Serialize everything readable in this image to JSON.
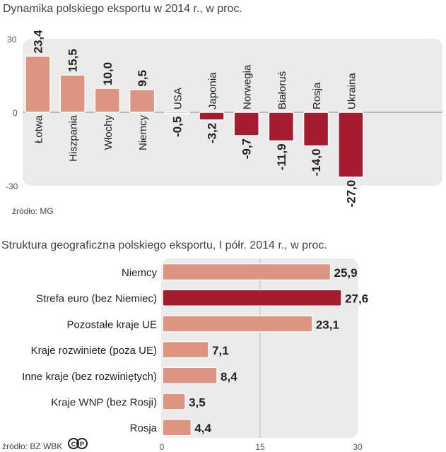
{
  "chart_data": [
    {
      "type": "bar",
      "orientation": "vertical",
      "title": "Dynamika polskiego eksportu w 2014 r., w proc.",
      "categories": [
        "Łotwa",
        "Hiszpania",
        "Włochy",
        "Niemcy",
        "USA",
        "Japonia",
        "Norwegia",
        "Białoruś",
        "Rosja",
        "Ukraina"
      ],
      "values": [
        23.4,
        15.5,
        10.0,
        9.5,
        -0.5,
        -3.2,
        -9.7,
        -11.9,
        -14.0,
        -27.0
      ],
      "value_labels": [
        "23,4",
        "15,5",
        "10,0",
        "9,5",
        "-0,5",
        "-3,2",
        "-9,7",
        "-11,9",
        "-14,0",
        "-27,0"
      ],
      "ylim": [
        -30,
        30
      ],
      "yticks": [
        "30",
        "0",
        "-30"
      ],
      "source": "źródło: MG",
      "colors": {
        "positive": "#dd9582",
        "negative": "#a51c30",
        "panel": "#ebebeb"
      }
    },
    {
      "type": "bar",
      "orientation": "horizontal",
      "title": "Struktura geograficzna polskiego eksportu, I półr. 2014 r., w proc.",
      "categories": [
        "Niemcy",
        "Strefa euro (bez Niemiec)",
        "Pozostałe kraje UE",
        "Kraje rozwiniete (poza UE)",
        "Inne kraje (bez rozwiniętych)",
        "Kraje WNP (bez Rosji)",
        "Rosja"
      ],
      "values": [
        25.9,
        27.6,
        23.1,
        7.1,
        8.4,
        3.5,
        4.4
      ],
      "value_labels": [
        "25,9",
        "27,6",
        "23,1",
        "7,1",
        "8,4",
        "3,5",
        "4,4"
      ],
      "highlight_index": 1,
      "xlim": [
        0,
        30
      ],
      "xticks": [
        "0",
        "15",
        "30"
      ],
      "source": "źródło: BZ WBK",
      "colors": {
        "bar": "#dd9582",
        "highlight": "#a51c30",
        "panel": "#ebebeb"
      }
    }
  ]
}
